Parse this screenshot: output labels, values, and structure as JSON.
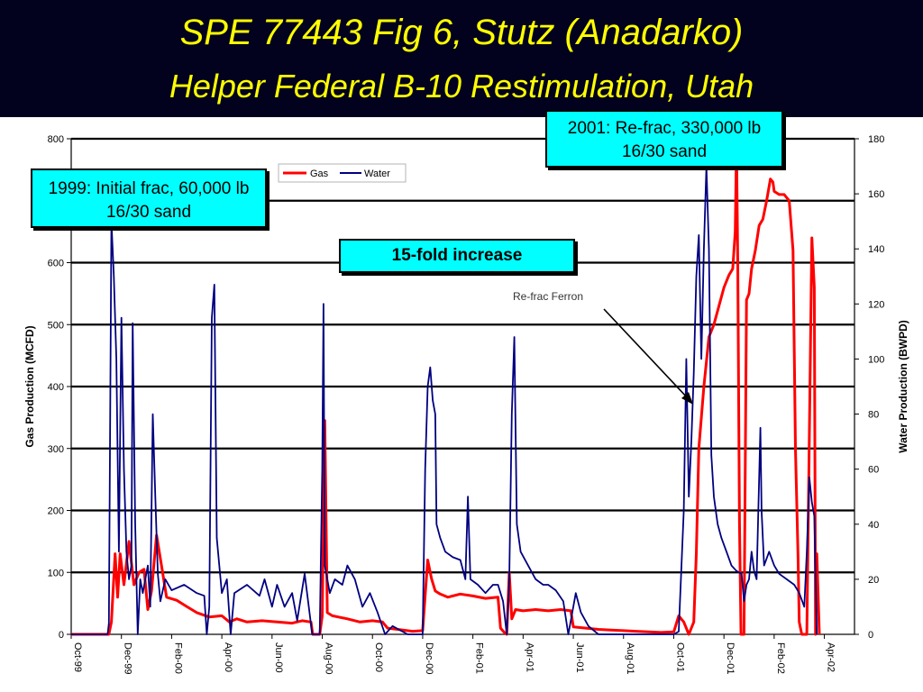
{
  "slide": {
    "title_line1": "SPE 77443 Fig 6, Stutz (Anadarko)",
    "title_line2": "Helper Federal B-10 Restimulation, Utah"
  },
  "callouts": {
    "initial_frac": "1999: Initial frac, 60,000 lb 16/30 sand",
    "refrac": "2001: Re-frac, 330,000 lb 16/30 sand",
    "increase": "15-fold increase",
    "refrac_ferron": "Re-frac Ferron"
  },
  "colors": {
    "background": "#02021f",
    "title": "#ffff00",
    "gas": "#ff0000",
    "water": "#000080",
    "callout_fill": "#00ffff"
  },
  "chart_data": {
    "type": "line",
    "xlabel": "",
    "ylabel_left": "Gas Production (MCFD)",
    "ylabel_right": "Water Production (BWPD)",
    "ylim_left": [
      0,
      800
    ],
    "ylim_right": [
      0,
      180
    ],
    "yticks_left": [
      0,
      100,
      200,
      300,
      400,
      500,
      600,
      700,
      800
    ],
    "ytick_labels_left": [
      "0",
      "100",
      "200",
      "300",
      "400",
      "500",
      "600",
      "",
      "800"
    ],
    "yticks_right": [
      0,
      20,
      40,
      60,
      80,
      100,
      120,
      140,
      160,
      180
    ],
    "x_ticks": [
      "Oct-99",
      "Dec-99",
      "Feb-00",
      "Apr-00",
      "Jun-00",
      "Aug-00",
      "Oct-00",
      "Dec-00",
      "Feb-01",
      "Apr-01",
      "Jun-01",
      "Aug-01",
      "Oct-01",
      "Dec-01",
      "Feb-02",
      "Apr-02"
    ],
    "xlim_months": [
      0,
      31.2
    ],
    "grid": "horizontal",
    "legend": "top-left",
    "series": [
      {
        "name": "Gas",
        "axis": "left",
        "color": "#ff0000",
        "points": [
          [
            0,
            0
          ],
          [
            1.5,
            0
          ],
          [
            1.6,
            20
          ],
          [
            1.75,
            130
          ],
          [
            1.85,
            60
          ],
          [
            1.95,
            130
          ],
          [
            2.1,
            80
          ],
          [
            2.3,
            150
          ],
          [
            2.5,
            80
          ],
          [
            2.7,
            100
          ],
          [
            2.9,
            105
          ],
          [
            3.05,
            40
          ],
          [
            3.2,
            70
          ],
          [
            3.4,
            160
          ],
          [
            3.6,
            110
          ],
          [
            3.8,
            60
          ],
          [
            4.2,
            55
          ],
          [
            4.6,
            45
          ],
          [
            5.0,
            35
          ],
          [
            5.5,
            28
          ],
          [
            6.0,
            30
          ],
          [
            6.3,
            20
          ],
          [
            6.6,
            25
          ],
          [
            7.0,
            20
          ],
          [
            7.6,
            22
          ],
          [
            8.2,
            20
          ],
          [
            8.8,
            18
          ],
          [
            9.2,
            22
          ],
          [
            9.55,
            20
          ],
          [
            9.62,
            0
          ],
          [
            9.9,
            0
          ],
          [
            10.0,
            30
          ],
          [
            10.1,
            345
          ],
          [
            10.2,
            35
          ],
          [
            10.4,
            30
          ],
          [
            11.0,
            25
          ],
          [
            11.5,
            20
          ],
          [
            12.0,
            22
          ],
          [
            12.4,
            20
          ],
          [
            12.6,
            10
          ],
          [
            13.0,
            8
          ],
          [
            13.6,
            5
          ],
          [
            14.0,
            6
          ],
          [
            14.2,
            120
          ],
          [
            14.35,
            90
          ],
          [
            14.5,
            70
          ],
          [
            14.7,
            65
          ],
          [
            15.0,
            60
          ],
          [
            15.5,
            65
          ],
          [
            16.0,
            62
          ],
          [
            16.5,
            58
          ],
          [
            17.0,
            60
          ],
          [
            17.1,
            10
          ],
          [
            17.25,
            3
          ],
          [
            17.35,
            0
          ],
          [
            17.45,
            100
          ],
          [
            17.55,
            25
          ],
          [
            17.7,
            40
          ],
          [
            18.0,
            38
          ],
          [
            18.5,
            40
          ],
          [
            19.0,
            38
          ],
          [
            19.5,
            40
          ],
          [
            19.9,
            38
          ],
          [
            20.0,
            12
          ],
          [
            20.5,
            10
          ],
          [
            21.0,
            8
          ],
          [
            21.5,
            7
          ],
          [
            22.0,
            6
          ],
          [
            22.5,
            5
          ],
          [
            23.0,
            4
          ],
          [
            23.5,
            3
          ],
          [
            24.0,
            4
          ],
          [
            24.2,
            30
          ],
          [
            24.4,
            20
          ],
          [
            24.6,
            0
          ],
          [
            24.8,
            20
          ],
          [
            24.9,
            130
          ],
          [
            25.0,
            300
          ],
          [
            25.2,
            400
          ],
          [
            25.4,
            480
          ],
          [
            25.6,
            500
          ],
          [
            25.8,
            530
          ],
          [
            26.0,
            560
          ],
          [
            26.2,
            580
          ],
          [
            26.35,
            590
          ],
          [
            26.45,
            650
          ],
          [
            26.5,
            790
          ],
          [
            26.55,
            600
          ],
          [
            26.62,
            180
          ],
          [
            26.68,
            0
          ],
          [
            26.8,
            0
          ],
          [
            26.9,
            540
          ],
          [
            27.0,
            550
          ],
          [
            27.1,
            590
          ],
          [
            27.25,
            620
          ],
          [
            27.4,
            660
          ],
          [
            27.55,
            670
          ],
          [
            27.7,
            700
          ],
          [
            27.85,
            735
          ],
          [
            27.95,
            730
          ],
          [
            28.0,
            715
          ],
          [
            28.2,
            710
          ],
          [
            28.4,
            710
          ],
          [
            28.6,
            700
          ],
          [
            28.75,
            620
          ],
          [
            28.85,
            300
          ],
          [
            28.95,
            130
          ],
          [
            29.0,
            20
          ],
          [
            29.1,
            0
          ],
          [
            29.3,
            0
          ],
          [
            29.5,
            640
          ],
          [
            29.6,
            560
          ],
          [
            29.65,
            0
          ],
          [
            29.7,
            130
          ],
          [
            29.8,
            0
          ]
        ]
      },
      {
        "name": "Water",
        "axis": "right",
        "color": "#000080",
        "points": [
          [
            0,
            0
          ],
          [
            1.45,
            0
          ],
          [
            1.5,
            4
          ],
          [
            1.6,
            150
          ],
          [
            1.7,
            130
          ],
          [
            1.8,
            100
          ],
          [
            1.9,
            30
          ],
          [
            2.0,
            115
          ],
          [
            2.1,
            60
          ],
          [
            2.2,
            30
          ],
          [
            2.3,
            20
          ],
          [
            2.4,
            25
          ],
          [
            2.45,
            113
          ],
          [
            2.55,
            40
          ],
          [
            2.65,
            0
          ],
          [
            2.75,
            20
          ],
          [
            2.85,
            15
          ],
          [
            2.95,
            20
          ],
          [
            3.05,
            25
          ],
          [
            3.15,
            10
          ],
          [
            3.25,
            80
          ],
          [
            3.35,
            50
          ],
          [
            3.45,
            22
          ],
          [
            3.55,
            12
          ],
          [
            3.75,
            20
          ],
          [
            4.0,
            16
          ],
          [
            4.5,
            18
          ],
          [
            5.0,
            15
          ],
          [
            5.3,
            14
          ],
          [
            5.4,
            0
          ],
          [
            5.5,
            10
          ],
          [
            5.6,
            115
          ],
          [
            5.7,
            127
          ],
          [
            5.8,
            35
          ],
          [
            6.0,
            15
          ],
          [
            6.2,
            20
          ],
          [
            6.35,
            0
          ],
          [
            6.5,
            15
          ],
          [
            7.0,
            18
          ],
          [
            7.5,
            14
          ],
          [
            7.7,
            20
          ],
          [
            8.0,
            10
          ],
          [
            8.2,
            18
          ],
          [
            8.5,
            10
          ],
          [
            8.8,
            15
          ],
          [
            9.0,
            5
          ],
          [
            9.3,
            22
          ],
          [
            9.6,
            0
          ],
          [
            9.9,
            0
          ],
          [
            10.0,
            60
          ],
          [
            10.05,
            120
          ],
          [
            10.1,
            25
          ],
          [
            10.3,
            15
          ],
          [
            10.5,
            20
          ],
          [
            10.8,
            18
          ],
          [
            11.0,
            25
          ],
          [
            11.3,
            20
          ],
          [
            11.6,
            10
          ],
          [
            11.9,
            15
          ],
          [
            12.2,
            8
          ],
          [
            12.5,
            0
          ],
          [
            12.8,
            3
          ],
          [
            13.4,
            0
          ],
          [
            14.0,
            0
          ],
          [
            14.1,
            60
          ],
          [
            14.2,
            90
          ],
          [
            14.3,
            97
          ],
          [
            14.4,
            85
          ],
          [
            14.5,
            80
          ],
          [
            14.55,
            40
          ],
          [
            14.7,
            35
          ],
          [
            14.9,
            30
          ],
          [
            15.2,
            28
          ],
          [
            15.5,
            27
          ],
          [
            15.7,
            20
          ],
          [
            15.8,
            50
          ],
          [
            15.9,
            20
          ],
          [
            16.2,
            18
          ],
          [
            16.5,
            15
          ],
          [
            16.8,
            18
          ],
          [
            17.0,
            18
          ],
          [
            17.2,
            12
          ],
          [
            17.35,
            0
          ],
          [
            17.45,
            20
          ],
          [
            17.55,
            80
          ],
          [
            17.65,
            108
          ],
          [
            17.75,
            40
          ],
          [
            17.9,
            30
          ],
          [
            18.2,
            25
          ],
          [
            18.5,
            20
          ],
          [
            18.8,
            18
          ],
          [
            19.0,
            18
          ],
          [
            19.3,
            16
          ],
          [
            19.6,
            12
          ],
          [
            19.8,
            0
          ],
          [
            20.1,
            15
          ],
          [
            20.3,
            8
          ],
          [
            20.6,
            3
          ],
          [
            21.0,
            0
          ],
          [
            22.0,
            0
          ],
          [
            23.0,
            0
          ],
          [
            24.0,
            0
          ],
          [
            24.2,
            1
          ],
          [
            24.4,
            45
          ],
          [
            24.5,
            100
          ],
          [
            24.6,
            50
          ],
          [
            24.7,
            70
          ],
          [
            24.8,
            95
          ],
          [
            24.9,
            130
          ],
          [
            25.0,
            145
          ],
          [
            25.1,
            100
          ],
          [
            25.2,
            140
          ],
          [
            25.3,
            170
          ],
          [
            25.4,
            140
          ],
          [
            25.5,
            65
          ],
          [
            25.6,
            50
          ],
          [
            25.75,
            40
          ],
          [
            25.9,
            35
          ],
          [
            26.1,
            30
          ],
          [
            26.3,
            25
          ],
          [
            26.5,
            23
          ],
          [
            26.7,
            22
          ],
          [
            26.8,
            12
          ],
          [
            26.9,
            18
          ],
          [
            27.0,
            20
          ],
          [
            27.1,
            30
          ],
          [
            27.2,
            23
          ],
          [
            27.3,
            20
          ],
          [
            27.45,
            75
          ],
          [
            27.5,
            45
          ],
          [
            27.6,
            25
          ],
          [
            27.8,
            30
          ],
          [
            28.0,
            25
          ],
          [
            28.2,
            22
          ],
          [
            28.5,
            20
          ],
          [
            28.8,
            18
          ],
          [
            29.0,
            15
          ],
          [
            29.2,
            10
          ],
          [
            29.3,
            30
          ],
          [
            29.4,
            57
          ],
          [
            29.5,
            48
          ],
          [
            29.6,
            43
          ],
          [
            29.7,
            0
          ]
        ]
      }
    ],
    "annotation_arrow": {
      "from": [
        25.3,
        78
      ],
      "label": "Re-frac Ferron"
    }
  }
}
